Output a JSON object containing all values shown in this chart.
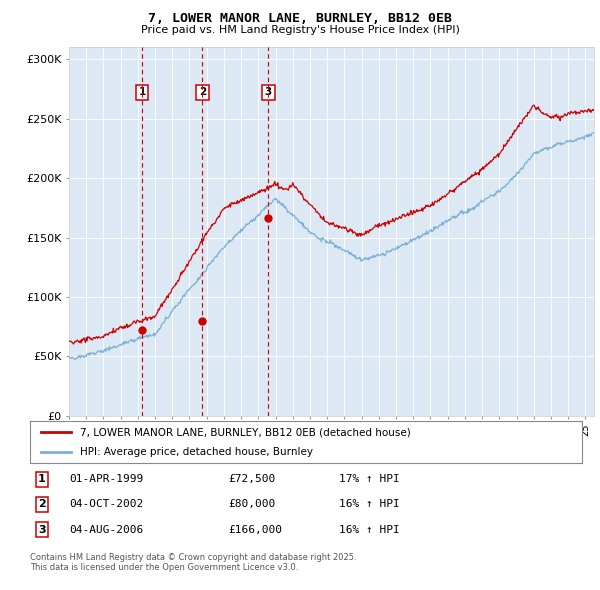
{
  "title": "7, LOWER MANOR LANE, BURNLEY, BB12 0EB",
  "subtitle": "Price paid vs. HM Land Registry's House Price Index (HPI)",
  "legend_line1": "7, LOWER MANOR LANE, BURNLEY, BB12 0EB (detached house)",
  "legend_line2": "HPI: Average price, detached house, Burnley",
  "footer1": "Contains HM Land Registry data © Crown copyright and database right 2025.",
  "footer2": "This data is licensed under the Open Government Licence v3.0.",
  "sale_labels": [
    "1",
    "2",
    "3"
  ],
  "sale_dates_label": [
    "01-APR-1999",
    "04-OCT-2002",
    "04-AUG-2006"
  ],
  "sale_prices_label": [
    "£72,500",
    "£80,000",
    "£166,000"
  ],
  "sale_hpi_label": [
    "17% ↑ HPI",
    "16% ↑ HPI",
    "16% ↑ HPI"
  ],
  "red_color": "#cc0000",
  "blue_color": "#7bafd4",
  "bg_color": "#dce9f5",
  "ylim": [
    0,
    310000
  ],
  "yticks": [
    0,
    50000,
    100000,
    150000,
    200000,
    250000,
    300000
  ],
  "ytick_labels": [
    "£0",
    "£50K",
    "£100K",
    "£150K",
    "£200K",
    "£250K",
    "£300K"
  ],
  "sale_years": [
    1999.25,
    2002.75,
    2006.58
  ],
  "sale_prices": [
    72500,
    80000,
    166000
  ]
}
